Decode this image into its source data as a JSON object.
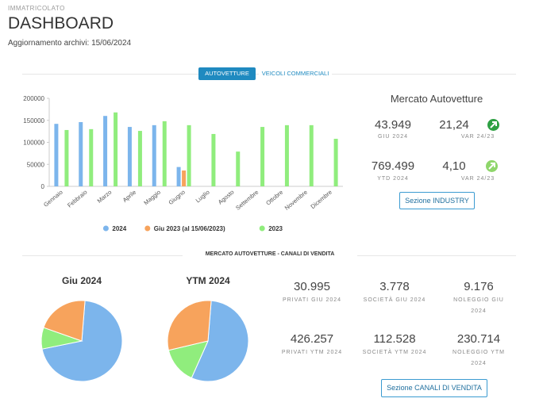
{
  "header": {
    "section": "IMMATRICOLATO",
    "title": "DASHBOARD",
    "update_label": "Aggiornamento archivi:",
    "update_date": "15/06/2024"
  },
  "tabs": [
    {
      "label": "AUTOVETTURE",
      "active": true
    },
    {
      "label": "VEICOLI COMMERCIALI",
      "active": false
    }
  ],
  "chart_data": [
    {
      "type": "bar",
      "categories": [
        "Gennaio",
        "Febbraio",
        "Marzo",
        "Aprile",
        "Maggio",
        "Giugno",
        "Luglio",
        "Agosto",
        "Settembre",
        "Ottobre",
        "Novembre",
        "Dicembre"
      ],
      "series": [
        {
          "name": "2024",
          "color": "#7cb5ec",
          "values": [
            142000,
            146000,
            160000,
            135000,
            139000,
            43949,
            null,
            null,
            null,
            null,
            null,
            null
          ]
        },
        {
          "name": "Giu 2023 (al 15/06/2023)",
          "color": "#f7a35c",
          "values": [
            null,
            null,
            null,
            null,
            null,
            36000,
            null,
            null,
            null,
            null,
            null,
            null
          ]
        },
        {
          "name": "2023",
          "color": "#90ed7d",
          "values": [
            128000,
            130000,
            168000,
            126000,
            148000,
            139000,
            119000,
            79000,
            135000,
            139000,
            139000,
            108000
          ]
        }
      ],
      "ylim": [
        0,
        200000
      ],
      "yticks": [
        0,
        50000,
        100000,
        150000,
        200000
      ],
      "grid": false,
      "legend": "bottom"
    },
    {
      "type": "pie",
      "title": "Giu 2024",
      "values": [
        30995,
        3778,
        9176
      ],
      "colors": [
        "#7cb5ec",
        "#90ed7d",
        "#f7a35c"
      ]
    },
    {
      "type": "pie",
      "title": "YTM 2024",
      "values": [
        426257,
        112528,
        230714
      ],
      "colors": [
        "#7cb5ec",
        "#90ed7d",
        "#f7a35c"
      ]
    }
  ],
  "market": {
    "title": "Mercato Autovetture",
    "kpis": [
      {
        "value": "43.949",
        "label": "GIU 2024"
      },
      {
        "value": "21,24",
        "label": "VAR 24/23"
      },
      {
        "value": "769.499",
        "label": "YTD 2024"
      },
      {
        "value": "4,10",
        "label": "VAR 24/23"
      }
    ],
    "button": "Sezione INDUSTRY"
  },
  "channels": {
    "title": "MERCATO AUTOVETTURE - CANALI DI VENDITA",
    "kpis": [
      {
        "value": "30.995",
        "label": "PRIVATI GIU 2024"
      },
      {
        "value": "3.778",
        "label": "SOCIETÀ GIU 2024"
      },
      {
        "value": "9.176",
        "label": "NOLEGGIO GIU 2024"
      },
      {
        "value": "426.257",
        "label": "PRIVATI YTM 2024"
      },
      {
        "value": "112.528",
        "label": "SOCIETÀ YTM 2024"
      },
      {
        "value": "230.714",
        "label": "NOLEGGIO YTM 2024"
      }
    ],
    "button": "Sezione CANALI DI VENDITA"
  }
}
